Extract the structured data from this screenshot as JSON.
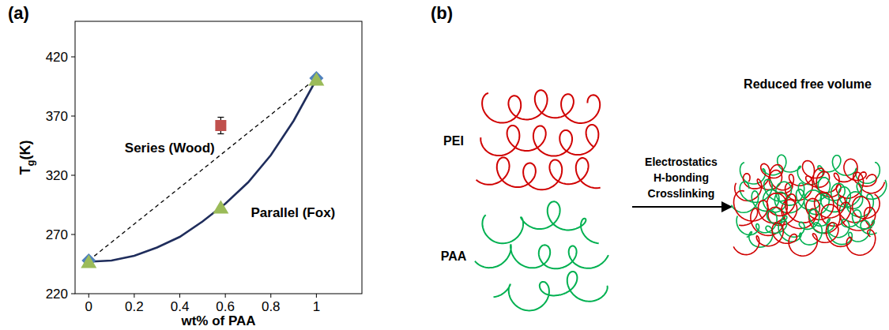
{
  "chart_data": {
    "type": "scatter",
    "panel_label": "(a)",
    "x_label": "wt% of PAA",
    "y_label": [
      "T",
      "g",
      "(K)"
    ],
    "xlim": [
      -0.06,
      1.2
    ],
    "ylim": [
      220,
      450
    ],
    "xticks": [
      0,
      0.2,
      0.4,
      0.6,
      0.8,
      1
    ],
    "yticks": [
      220,
      270,
      320,
      370,
      420
    ],
    "grid": false,
    "annotations": [
      "Series (Wood)",
      "Parallel (Fox)"
    ],
    "series": [
      {
        "type": "line",
        "color": "#000000",
        "line_style": "dashed",
        "x": [
          0,
          1
        ],
        "values": [
          248,
          402
        ]
      },
      {
        "type": "line",
        "color": "#1f2d5c",
        "line_style": "solid",
        "x": [
          0,
          0.1,
          0.2,
          0.3,
          0.4,
          0.5,
          0.58,
          0.6,
          0.7,
          0.8,
          0.9,
          1
        ],
        "values": [
          247,
          248,
          252,
          259,
          268,
          281,
          293,
          296,
          314,
          337,
          366,
          401
        ]
      },
      {
        "type": "scatter",
        "color": "#4f81bd",
        "marker": "diamond",
        "x": [
          0,
          1
        ],
        "values": [
          248,
          402
        ]
      },
      {
        "type": "scatter",
        "color": "#9bbb59",
        "marker": "triangle",
        "x": [
          0,
          0.58,
          1
        ],
        "values": [
          247,
          293,
          401
        ]
      },
      {
        "type": "scatter",
        "color": "#c0504d",
        "marker": "square",
        "x": [
          0.58
        ],
        "values": [
          362
        ],
        "errors": [
          7
        ]
      }
    ]
  },
  "diagram": {
    "panel_label": "(b)",
    "chains": [
      {
        "name": "PEI",
        "color": "#d00000"
      },
      {
        "name": "PAA",
        "color": "#00b050"
      }
    ],
    "arrow_labels": [
      "Electrostatics",
      "H-bonding",
      "Crosslinking"
    ],
    "result": "Reduced free volume"
  }
}
